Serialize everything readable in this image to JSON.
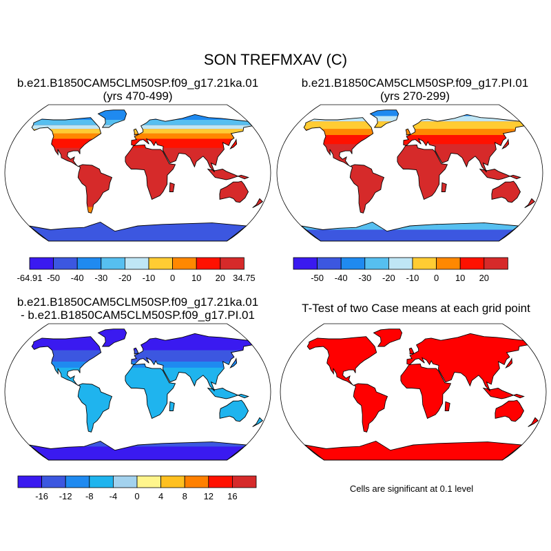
{
  "figure": {
    "title": "SON TREFMXAV (C)"
  },
  "colors": {
    "temperature_scale": [
      "#3a1af0",
      "#3c57e0",
      "#1f8af0",
      "#56bff0",
      "#bfe6f5",
      "#ffcc33",
      "#ff8800",
      "#ff1100",
      "#d62a2a"
    ],
    "difference_scale": [
      "#3a1af0",
      "#3c57e0",
      "#1f8af0",
      "#1fb4ee",
      "#a3d2ee",
      "#fff58c",
      "#ffc020",
      "#ff8000",
      "#ff1100",
      "#d62a2a"
    ],
    "ttest_fill": "#ff0000",
    "coastline": "#000000"
  },
  "panels": [
    {
      "id": "case1",
      "title_line1": "b.e21.B1850CAM5CLM50SP.f09_g17.21ka.01",
      "title_line2": "(yrs 470-499)",
      "colorbar_labels": [
        "-64.91",
        "-50",
        "-40",
        "-30",
        "-20",
        "-10",
        "0",
        "10",
        "20",
        "34.75"
      ]
    },
    {
      "id": "case2",
      "title_line1": "b.e21.B1850CAM5CLM50SP.f09_g17.PI.01",
      "title_line2": "(yrs 270-299)",
      "colorbar_labels": [
        "-50",
        "-40",
        "-30",
        "-20",
        "-10",
        "0",
        "10",
        "20"
      ]
    },
    {
      "id": "difference",
      "title_line1": "b.e21.B1850CAM5CLM50SP.f09_g17.21ka.01",
      "title_line2": "- b.e21.B1850CAM5CLM50SP.f09_g17.PI.01",
      "colorbar_labels": [
        "-16",
        "-12",
        "-8",
        "-4",
        "0",
        "4",
        "8",
        "12",
        "16"
      ]
    },
    {
      "id": "ttest",
      "title_line1": "T-Test of two Case means at each grid point",
      "note": "Cells are significant at 0.1 level"
    }
  ]
}
